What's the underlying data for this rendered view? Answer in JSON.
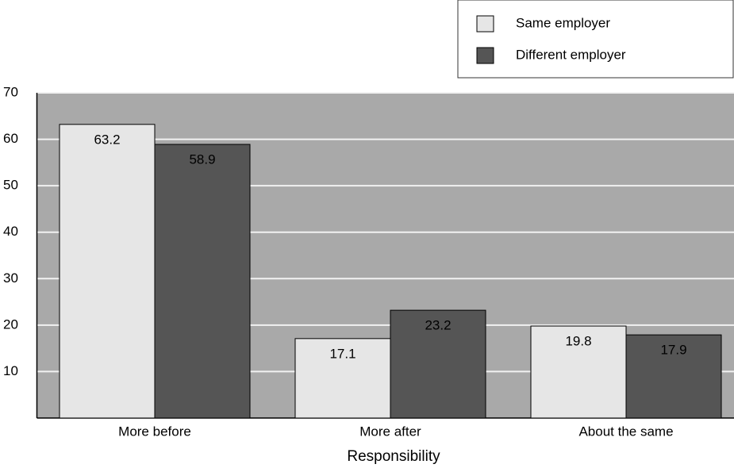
{
  "chart_data": {
    "type": "bar",
    "x_label": "Responsibility",
    "categories": [
      "More before",
      "More after",
      "About the same"
    ],
    "series": [
      {
        "name": "Same employer",
        "color": "#e6e6e6",
        "values": [
          63.2,
          17.1,
          19.8
        ]
      },
      {
        "name": "Different employer",
        "color": "#555555",
        "values": [
          58.9,
          23.2,
          17.9
        ]
      }
    ],
    "ylim": [
      0,
      70
    ],
    "yticks": [
      10,
      20,
      30,
      40,
      50,
      60,
      70
    ],
    "grid": true
  }
}
